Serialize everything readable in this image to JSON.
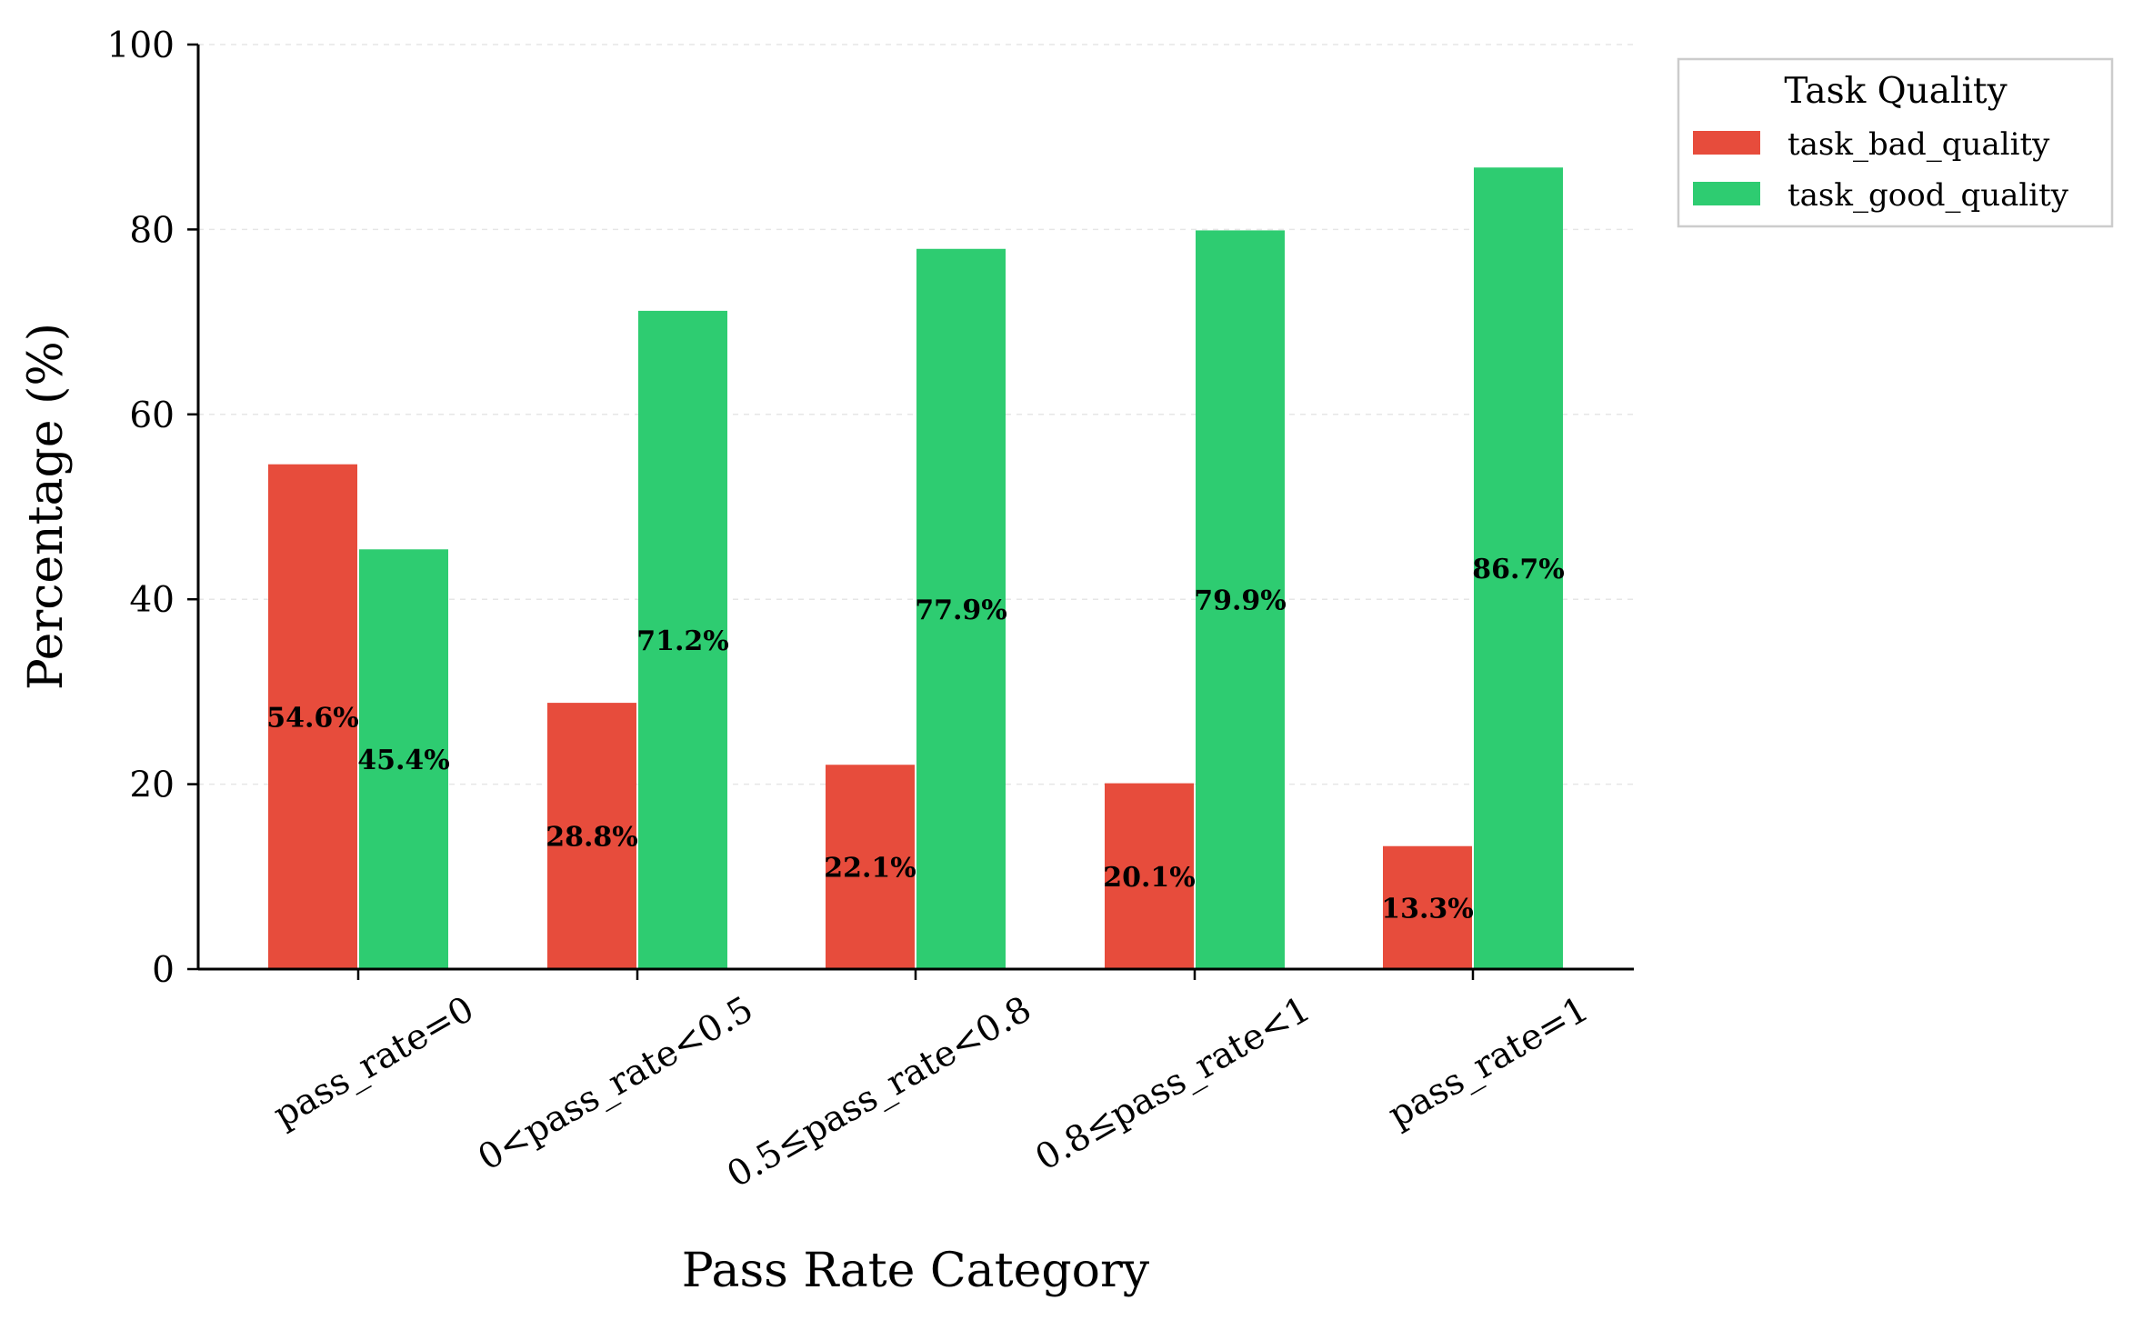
{
  "chart_data": {
    "type": "bar",
    "xlabel": "Pass Rate Category",
    "ylabel": "Percentage (%)",
    "ylim": [
      0,
      100
    ],
    "yticks": [
      0,
      20,
      40,
      60,
      80,
      100
    ],
    "grid": "horizontal dashed",
    "categories": [
      "pass_rate=0",
      "0<pass_rate<0.5",
      "0.5≤pass_rate<0.8",
      "0.8≤pass_rate<1",
      "pass_rate=1"
    ],
    "series": [
      {
        "name": "task_bad_quality",
        "color": "#e74c3c",
        "values": [
          54.6,
          28.8,
          22.1,
          20.1,
          13.3
        ],
        "labels": [
          "54.6%",
          "28.8%",
          "22.1%",
          "20.1%",
          "13.3%"
        ]
      },
      {
        "name": "task_good_quality",
        "color": "#2ecc71",
        "values": [
          45.4,
          71.2,
          77.9,
          79.9,
          86.7
        ],
        "labels": [
          "45.4%",
          "71.2%",
          "77.9%",
          "79.9%",
          "86.7%"
        ]
      }
    ],
    "legend": {
      "title": "Task Quality",
      "placement": "outside top-right"
    }
  }
}
